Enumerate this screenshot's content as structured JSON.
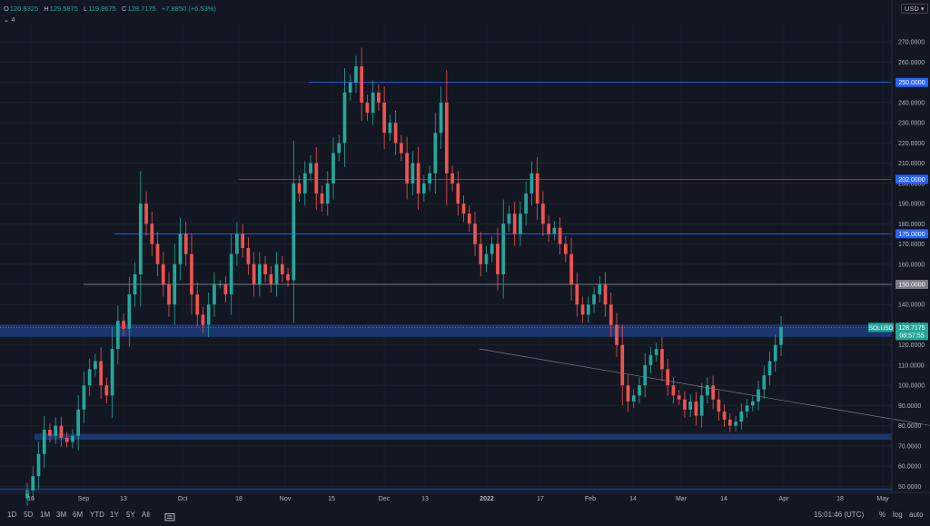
{
  "legend": {
    "open_key": "O",
    "open": "120.8325",
    "high_key": "H",
    "high": "129.5875",
    "low_key": "L",
    "low": "119.9675",
    "close_key": "C",
    "close": "128.7175",
    "change": "+7.8850 (+6.53%)",
    "indicator_count": "4"
  },
  "currency": "USD",
  "price_badge": {
    "symbol": "SOLUSD",
    "price": "128.7175",
    "countdown": "08:57:55"
  },
  "level_badges": [
    "250.0000",
    "202.0000",
    "175.0000",
    "150.0000"
  ],
  "timeframes": [
    "1D",
    "5D",
    "1M",
    "3M",
    "6M",
    "YTD",
    "1Y",
    "5Y",
    "All"
  ],
  "bottom_right": {
    "clock": "15:01:46 (UTC)",
    "percent": "%",
    "log": "log",
    "auto": "auto"
  },
  "colors": {
    "up": "#26a69a",
    "down": "#ef5350",
    "level": "#2962ff",
    "zone": "#1e3a78",
    "background": "#131722"
  },
  "chart_data": {
    "type": "candlestick",
    "symbol": "SOLUSD",
    "ylim": [
      47,
      280
    ],
    "y_ticks": [
      270,
      260,
      250,
      240,
      230,
      220,
      210,
      200,
      190,
      180,
      170,
      160,
      150,
      140,
      130,
      120,
      110,
      100,
      90,
      80,
      70,
      60,
      50
    ],
    "x_ticks": [
      "16",
      "Sep",
      "13",
      "Oct",
      "18",
      "Nov",
      "15",
      "Dec",
      "13",
      "2022",
      "17",
      "Feb",
      "14",
      "Mar",
      "14",
      "Apr",
      "18",
      "May"
    ],
    "horizontal_levels": [
      250,
      202,
      175,
      150
    ],
    "zones": [
      [
        124,
        130
      ],
      [
        73,
        76
      ],
      [
        48,
        49
      ]
    ],
    "trendline_approx": [
      [
        0.6,
        118
      ],
      [
        1.2,
        80
      ]
    ],
    "candles_approx_close": [
      48,
      55,
      66,
      78,
      75,
      80,
      74,
      72,
      75,
      88,
      100,
      108,
      112,
      100,
      95,
      118,
      132,
      128,
      145,
      155,
      190,
      180,
      170,
      160,
      150,
      140,
      160,
      175,
      165,
      145,
      135,
      130,
      140,
      150,
      150,
      145,
      165,
      175,
      168,
      160,
      150,
      160,
      155,
      150,
      160,
      155,
      152,
      200,
      195,
      205,
      210,
      195,
      190,
      200,
      215,
      220,
      245,
      250,
      258,
      240,
      235,
      245,
      240,
      225,
      230,
      220,
      215,
      200,
      210,
      195,
      200,
      205,
      225,
      240,
      205,
      200,
      190,
      185,
      180,
      170,
      160,
      165,
      170,
      155,
      180,
      185,
      175,
      185,
      195,
      205,
      190,
      180,
      175,
      178,
      170,
      165,
      150,
      140,
      135,
      140,
      145,
      150,
      140,
      130,
      120,
      100,
      92,
      95,
      100,
      110,
      115,
      118,
      108,
      100,
      95,
      93,
      88,
      92,
      85,
      95,
      100,
      93,
      87,
      83,
      80,
      82,
      87,
      90,
      92,
      98,
      105,
      112,
      120,
      128.72
    ]
  }
}
